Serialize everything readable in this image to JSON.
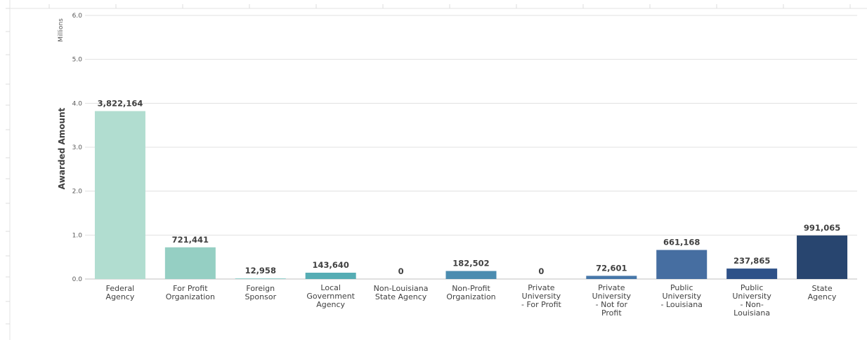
{
  "chart_data": {
    "type": "bar",
    "ylabel": "Awarded Amount",
    "y_unit_label": "Millions",
    "ylim": [
      0,
      6.0
    ],
    "yticks": [
      "0.0",
      "1.0",
      "2.0",
      "3.0",
      "4.0",
      "5.0",
      "6.0"
    ],
    "grid": true,
    "categories": [
      [
        "Federal",
        "Agency"
      ],
      [
        "For Profit",
        "Organization"
      ],
      [
        "Foreign",
        "Sponsor"
      ],
      [
        "Local",
        "Government",
        "Agency"
      ],
      [
        "Non-Louisiana",
        "State Agency"
      ],
      [
        "Non-Profit",
        "Organization"
      ],
      [
        "Private",
        "University",
        "- For Profit"
      ],
      [
        "Private",
        "University",
        "- Not for",
        "Profit"
      ],
      [
        "Public",
        "University",
        "- Louisiana"
      ],
      [
        "Public",
        "University",
        "- Non-",
        "Louisiana"
      ],
      [
        "State",
        "Agency"
      ]
    ],
    "values": [
      3822164,
      721441,
      12958,
      143640,
      0,
      182502,
      0,
      72601,
      661168,
      237865,
      991065
    ],
    "data_labels": [
      "3,822,164",
      "721,441",
      "12,958",
      "143,640",
      "0",
      "182,502",
      "0",
      "72,601",
      "661,168",
      "237,865",
      "991,065"
    ],
    "colors": [
      "#b1ddd0",
      "#95cfc3",
      "#7cc5c1",
      "#56adb4",
      "#4a9cb2",
      "#4b8cb0",
      "#4a7fad",
      "#4677a9",
      "#466ea1",
      "#2e5188",
      "#28456f"
    ]
  }
}
